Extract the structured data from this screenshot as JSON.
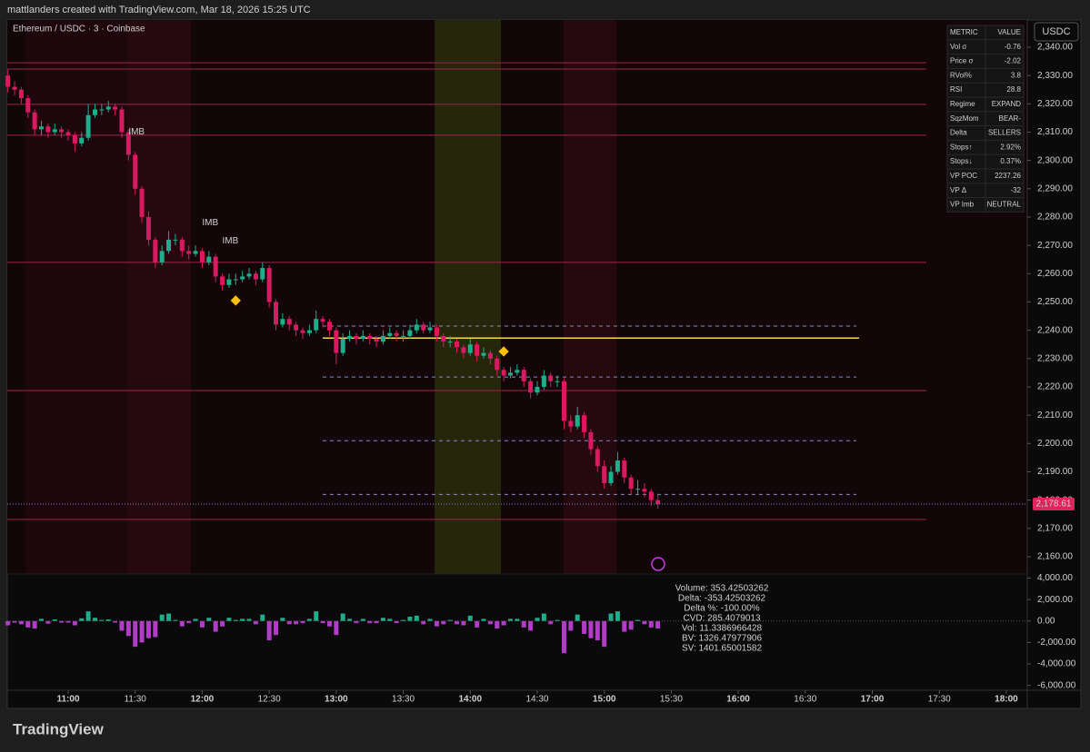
{
  "header": {
    "credit": "mattlanders created with TradingView.com, Mar 18, 2026 15:25 UTC",
    "symbol": "Ethereum / USDC · 3 · Coinbase",
    "currency": "USDC",
    "brand": "TradingView"
  },
  "chart_data": {
    "type": "candlestick",
    "up_color": "#1fae8c",
    "down_color": "#d81b60",
    "x": [
      "10:33",
      "10:36",
      "10:39",
      "10:42",
      "10:45",
      "10:48",
      "10:51",
      "10:54",
      "10:57",
      "11:00",
      "11:03",
      "11:06",
      "11:09",
      "11:12",
      "11:15",
      "11:18",
      "11:21",
      "11:24",
      "11:27",
      "11:30",
      "11:33",
      "11:36",
      "11:39",
      "11:42",
      "11:45",
      "11:48",
      "11:51",
      "11:54",
      "11:57",
      "12:00",
      "12:03",
      "12:06",
      "12:09",
      "12:12",
      "12:15",
      "12:18",
      "12:21",
      "12:24",
      "12:27",
      "12:30",
      "12:33",
      "12:36",
      "12:39",
      "12:42",
      "12:45",
      "12:48",
      "12:51",
      "12:54",
      "12:57",
      "13:00",
      "13:03",
      "13:06",
      "13:09",
      "13:12",
      "13:15",
      "13:18",
      "13:21",
      "13:24",
      "13:27",
      "13:30",
      "13:33",
      "13:36",
      "13:39",
      "13:42",
      "13:45",
      "13:48",
      "13:51",
      "13:54",
      "13:57",
      "14:00",
      "14:03",
      "14:06",
      "14:09",
      "14:12",
      "14:15",
      "14:18",
      "14:21",
      "14:24",
      "14:27",
      "14:30",
      "14:33",
      "14:36",
      "14:39",
      "14:42",
      "14:45",
      "14:48",
      "14:51",
      "14:54",
      "14:57",
      "15:00",
      "15:03",
      "15:06",
      "15:09",
      "15:12",
      "15:15",
      "15:18",
      "15:21",
      "15:24"
    ],
    "ohlc": [
      [
        2330,
        2332,
        2324,
        2326
      ],
      [
        2326,
        2328,
        2323,
        2325
      ],
      [
        2325,
        2326,
        2320,
        2322
      ],
      [
        2322,
        2323,
        2315,
        2317
      ],
      [
        2317,
        2318,
        2309,
        2311
      ],
      [
        2311,
        2314,
        2309,
        2312
      ],
      [
        2312,
        2313,
        2308,
        2310
      ],
      [
        2310,
        2313,
        2309,
        2311
      ],
      [
        2311,
        2312,
        2308,
        2310
      ],
      [
        2310,
        2311,
        2307,
        2309
      ],
      [
        2309,
        2310,
        2303,
        2306
      ],
      [
        2306,
        2310,
        2305,
        2308
      ],
      [
        2308,
        2320,
        2307,
        2316
      ],
      [
        2316,
        2320,
        2315,
        2318
      ],
      [
        2318,
        2320,
        2316,
        2318
      ],
      [
        2318,
        2321,
        2317,
        2319
      ],
      [
        2319,
        2320,
        2316,
        2318
      ],
      [
        2318,
        2319,
        2308,
        2310
      ],
      [
        2310,
        2311,
        2300,
        2302
      ],
      [
        2302,
        2303,
        2288,
        2290
      ],
      [
        2290,
        2291,
        2278,
        2280
      ],
      [
        2280,
        2282,
        2270,
        2272
      ],
      [
        2272,
        2273,
        2262,
        2264
      ],
      [
        2264,
        2270,
        2263,
        2268
      ],
      [
        2268,
        2275,
        2267,
        2272
      ],
      [
        2272,
        2274,
        2270,
        2272
      ],
      [
        2272,
        2273,
        2266,
        2268
      ],
      [
        2268,
        2270,
        2265,
        2267
      ],
      [
        2267,
        2270,
        2266,
        2268
      ],
      [
        2268,
        2269,
        2262,
        2264
      ],
      [
        2264,
        2268,
        2263,
        2266
      ],
      [
        2266,
        2267,
        2257,
        2259
      ],
      [
        2259,
        2260,
        2254,
        2256
      ],
      [
        2256,
        2260,
        2255,
        2258
      ],
      [
        2258,
        2260,
        2256,
        2258
      ],
      [
        2258,
        2261,
        2257,
        2259
      ],
      [
        2259,
        2262,
        2258,
        2260
      ],
      [
        2260,
        2261,
        2256,
        2258
      ],
      [
        2258,
        2264,
        2257,
        2262
      ],
      [
        2262,
        2263,
        2248,
        2250
      ],
      [
        2250,
        2251,
        2240,
        2242
      ],
      [
        2242,
        2246,
        2241,
        2244
      ],
      [
        2244,
        2245,
        2240,
        2242
      ],
      [
        2242,
        2243,
        2238,
        2240
      ],
      [
        2240,
        2241,
        2237,
        2239
      ],
      [
        2239,
        2242,
        2238,
        2240
      ],
      [
        2240,
        2247,
        2239,
        2244
      ],
      [
        2244,
        2245,
        2241,
        2243
      ],
      [
        2243,
        2244,
        2238,
        2240
      ],
      [
        2240,
        2241,
        2228,
        2232
      ],
      [
        2232,
        2239,
        2231,
        2237
      ],
      [
        2237,
        2240,
        2236,
        2238
      ],
      [
        2238,
        2239,
        2235,
        2237
      ],
      [
        2237,
        2240,
        2236,
        2238
      ],
      [
        2238,
        2239,
        2235,
        2237
      ],
      [
        2237,
        2238,
        2234,
        2236
      ],
      [
        2236,
        2240,
        2235,
        2238
      ],
      [
        2238,
        2241,
        2237,
        2239
      ],
      [
        2239,
        2240,
        2236,
        2238
      ],
      [
        2238,
        2240,
        2236,
        2238
      ],
      [
        2238,
        2242,
        2237,
        2240
      ],
      [
        2240,
        2244,
        2239,
        2242
      ],
      [
        2242,
        2243,
        2239,
        2240
      ],
      [
        2240,
        2243,
        2239,
        2241
      ],
      [
        2241,
        2242,
        2236,
        2238
      ],
      [
        2238,
        2239,
        2234,
        2236
      ],
      [
        2236,
        2238,
        2234,
        2236
      ],
      [
        2236,
        2237,
        2232,
        2234
      ],
      [
        2234,
        2235,
        2230,
        2232
      ],
      [
        2232,
        2237,
        2231,
        2235
      ],
      [
        2235,
        2236,
        2229,
        2231
      ],
      [
        2231,
        2234,
        2230,
        2232
      ],
      [
        2232,
        2233,
        2228,
        2230
      ],
      [
        2230,
        2231,
        2224,
        2226
      ],
      [
        2226,
        2227,
        2222,
        2224
      ],
      [
        2224,
        2227,
        2223,
        2225
      ],
      [
        2225,
        2228,
        2224,
        2226
      ],
      [
        2226,
        2227,
        2220,
        2222
      ],
      [
        2222,
        2223,
        2216,
        2218
      ],
      [
        2218,
        2222,
        2217,
        2220
      ],
      [
        2220,
        2226,
        2219,
        2224
      ],
      [
        2224,
        2225,
        2220,
        2222
      ],
      [
        2222,
        2224,
        2220,
        2222
      ],
      [
        2222,
        2223,
        2205,
        2208
      ],
      [
        2208,
        2210,
        2204,
        2206
      ],
      [
        2206,
        2213,
        2205,
        2210
      ],
      [
        2210,
        2211,
        2202,
        2204
      ],
      [
        2204,
        2205,
        2196,
        2198
      ],
      [
        2198,
        2199,
        2190,
        2192
      ],
      [
        2192,
        2194,
        2184,
        2186
      ],
      [
        2186,
        2192,
        2185,
        2190
      ],
      [
        2190,
        2197,
        2189,
        2194
      ],
      [
        2194,
        2195,
        2186,
        2188
      ],
      [
        2188,
        2189,
        2182,
        2184
      ],
      [
        2184,
        2187,
        2182,
        2184
      ],
      [
        2184,
        2186,
        2181,
        2183
      ],
      [
        2183,
        2184,
        2178,
        2180
      ],
      [
        2180,
        2182,
        2177,
        2178.61
      ]
    ],
    "ylim": [
      2154,
      2350
    ],
    "yticks": [
      {
        "value": 2160,
        "label": "2,160.00"
      },
      {
        "value": 2170,
        "label": "2,170.00"
      },
      {
        "value": 2180,
        "label": "2,180.00"
      },
      {
        "value": 2190,
        "label": "2,190.00"
      },
      {
        "value": 2200,
        "label": "2,200.00"
      },
      {
        "value": 2210,
        "label": "2,210.00"
      },
      {
        "value": 2220,
        "label": "2,220.00"
      },
      {
        "value": 2230,
        "label": "2,230.00"
      },
      {
        "value": 2240,
        "label": "2,240.00"
      },
      {
        "value": 2250,
        "label": "2,250.00"
      },
      {
        "value": 2260,
        "label": "2,260.00"
      },
      {
        "value": 2270,
        "label": "2,270.00"
      },
      {
        "value": 2280,
        "label": "2,280.00"
      },
      {
        "value": 2290,
        "label": "2,290.00"
      },
      {
        "value": 2300,
        "label": "2,300.00"
      },
      {
        "value": 2310,
        "label": "2,310.00"
      },
      {
        "value": 2320,
        "label": "2,320.00"
      },
      {
        "value": 2330,
        "label": "2,330.00"
      },
      {
        "value": 2340,
        "label": "2,340.00"
      }
    ],
    "xticks": [
      "11:00",
      "11:30",
      "12:00",
      "12:30",
      "13:00",
      "13:30",
      "14:00",
      "14:30",
      "15:00",
      "15:30",
      "16:00",
      "16:30",
      "17:00",
      "17:30",
      "18:00"
    ],
    "last_price": {
      "value": 2178.61,
      "label": "2,178.61"
    },
    "levels": [
      2334.5,
      2332.3,
      2319.8,
      2308.9,
      2264,
      2218.7,
      2173.2
    ],
    "dashed_levels": [
      2241.5,
      2223.5,
      2201,
      2182
    ],
    "poc_level": 2237.26,
    "signals": [
      {
        "x": "12:15",
        "value": 2250.5
      },
      {
        "x": "14:15",
        "value": 2232.5
      }
    ],
    "annotations": [
      {
        "text": "IMB",
        "x": "11:27",
        "value": 2310
      },
      {
        "text": "IMB",
        "x": "12:00",
        "value": 2278
      },
      {
        "text": "IMB",
        "x": "12:09",
        "value": 2271.5
      }
    ],
    "lower_panel": {
      "type": "bar",
      "pos_color": "#1fae8c",
      "neg_color": "#b03cc8",
      "values": [
        -400,
        -150,
        -300,
        -600,
        -700,
        200,
        -250,
        150,
        -150,
        -150,
        -400,
        250,
        900,
        300,
        100,
        150,
        -150,
        -900,
        -1400,
        -2400,
        -2000,
        -1600,
        -1500,
        600,
        700,
        100,
        -500,
        -200,
        200,
        -600,
        300,
        -1000,
        -500,
        300,
        100,
        200,
        200,
        -300,
        600,
        -1800,
        -1300,
        300,
        -300,
        -300,
        -200,
        200,
        900,
        -200,
        -500,
        -1300,
        700,
        200,
        -200,
        200,
        -200,
        -200,
        300,
        200,
        -200,
        100,
        400,
        500,
        -300,
        200,
        -500,
        -300,
        100,
        -300,
        -400,
        500,
        -600,
        200,
        -300,
        -700,
        -400,
        200,
        200,
        -600,
        -900,
        300,
        700,
        -300,
        100,
        -3000,
        -900,
        600,
        -1200,
        -1600,
        -1800,
        -2400,
        700,
        900,
        -1000,
        -800,
        100,
        -300,
        -600,
        -700
      ],
      "ylim": [
        -6200,
        4300
      ],
      "yticks": [
        {
          "value": 4000,
          "label": "4,000.00"
        },
        {
          "value": 2000,
          "label": "2,000.00"
        },
        {
          "value": 0,
          "label": "0.00"
        },
        {
          "value": -2000,
          "label": "-2,000.00"
        },
        {
          "value": -4000,
          "label": "-4,000.00"
        },
        {
          "value": -6000,
          "label": "-6,000.00"
        }
      ],
      "readout": [
        "Volume: 353.42503262",
        "Delta: -353.42503262",
        "Delta %: -100.00%",
        "CVD: 285.4079013",
        "Vol: 11.3386966428",
        "BV: 1326.47977906",
        "SV: 1401.65001582"
      ]
    }
  },
  "metrics": {
    "columns": [
      "METRIC",
      "VALUE"
    ],
    "rows": [
      {
        "label": "Vol σ",
        "value": "-0.76",
        "color": "#2ee59d"
      },
      {
        "label": "Price σ",
        "value": "-2.02",
        "color": "#ff4f6d"
      },
      {
        "label": "RVol%",
        "value": "3.8",
        "color": "#2ee59d"
      },
      {
        "label": "RSI",
        "value": "28.8",
        "color": "#2ee59d"
      },
      {
        "label": "Regime",
        "value": "EXPAND",
        "color": "#2ee59d"
      },
      {
        "label": "SqzMom",
        "value": "BEAR-",
        "color": "#ff4f6d"
      },
      {
        "label": "Delta",
        "value": "SELLERS",
        "color": "#ff4f6d"
      },
      {
        "label": "Stops↑",
        "value": "2.92%",
        "color": "#ff4f6d"
      },
      {
        "label": "Stops↓",
        "value": "0.37%",
        "color": "#2ee59d"
      },
      {
        "label": "VP POC",
        "value": "2237.26",
        "color": "#ffd54f"
      },
      {
        "label": "VP Δ",
        "value": "-32",
        "color": "#ff4f6d"
      },
      {
        "label": "VP Imb",
        "value": "NEUTRAL",
        "color": "#bbbbbb"
      }
    ]
  }
}
